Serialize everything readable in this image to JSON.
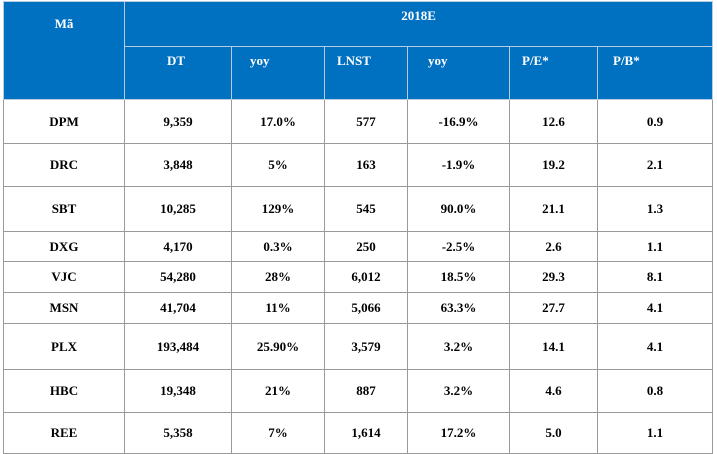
{
  "header": {
    "code_label": "Mã",
    "group_label": "2018E",
    "columns": [
      "DT",
      "yoy",
      "LNST",
      "yoy",
      "P/E*",
      "P/B*"
    ]
  },
  "rows": [
    {
      "code": "DPM",
      "cells": [
        "9,359",
        "17.0%",
        "577",
        "-16.9%",
        "12.6",
        "0.9"
      ]
    },
    {
      "code": "DRC",
      "cells": [
        "3,848",
        "5%",
        "163",
        "-1.9%",
        "19.2",
        "2.1"
      ]
    },
    {
      "code": "SBT",
      "cells": [
        "10,285",
        "129%",
        "545",
        "90.0%",
        "21.1",
        "1.3"
      ]
    },
    {
      "code": "DXG",
      "cells": [
        "4,170",
        "0.3%",
        "250",
        "-2.5%",
        "2.6",
        "1.1"
      ]
    },
    {
      "code": "VJC",
      "cells": [
        "54,280",
        "28%",
        "6,012",
        "18.5%",
        "29.3",
        "8.1"
      ]
    },
    {
      "code": "MSN",
      "cells": [
        "41,704",
        "11%",
        "5,066",
        "63.3%",
        "27.7",
        "4.1"
      ]
    },
    {
      "code": "PLX",
      "cells": [
        "193,484",
        "25.90%",
        "3,579",
        "3.2%",
        "14.1",
        "4.1"
      ]
    },
    {
      "code": "HBC",
      "cells": [
        "19,348",
        "21%",
        "887",
        "3.2%",
        "4.6",
        "0.8"
      ]
    },
    {
      "code": "REE",
      "cells": [
        "5,358",
        "7%",
        "1,614",
        "17.2%",
        "5.0",
        "1.1"
      ]
    }
  ],
  "colors": {
    "header_bg": "#0070c0",
    "header_text": "#ffffff",
    "border": "#9a9a9a"
  }
}
